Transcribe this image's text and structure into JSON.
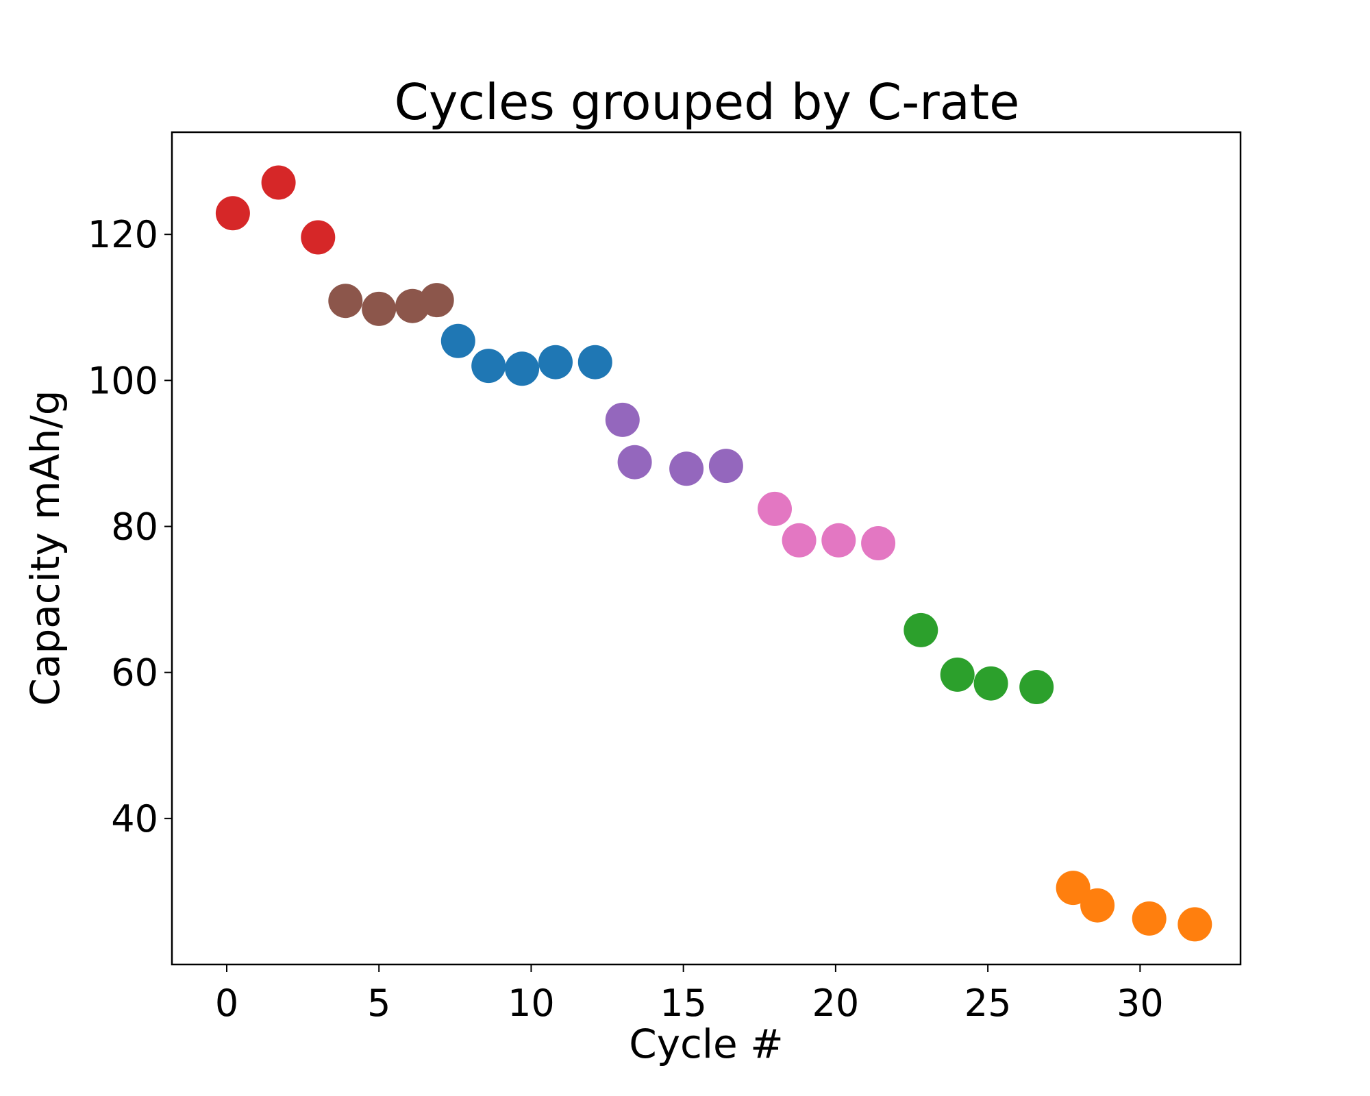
{
  "chart_data": {
    "type": "scatter",
    "title": "Cycles grouped by C-rate",
    "xlabel": "Cycle #",
    "ylabel": "Capacity mAh/g",
    "xlim": [
      -1.8,
      33.3
    ],
    "ylim": [
      20,
      134
    ],
    "xticks": [
      0,
      5,
      10,
      15,
      20,
      25,
      30
    ],
    "yticks": [
      40,
      60,
      80,
      100,
      120
    ],
    "grid": false,
    "legend": false,
    "series": [
      {
        "color": "#d62728",
        "points": [
          [
            0.2,
            122.9
          ],
          [
            1.7,
            127.1
          ],
          [
            3.0,
            119.6
          ]
        ]
      },
      {
        "color": "#8c564b",
        "points": [
          [
            3.9,
            110.9
          ],
          [
            5.0,
            109.8
          ],
          [
            6.1,
            110.2
          ],
          [
            6.9,
            111.0
          ]
        ]
      },
      {
        "color": "#1f77b4",
        "points": [
          [
            7.6,
            105.4
          ],
          [
            8.6,
            102.0
          ],
          [
            9.7,
            101.6
          ],
          [
            10.8,
            102.5
          ],
          [
            12.1,
            102.5
          ]
        ]
      },
      {
        "color": "#9467bd",
        "points": [
          [
            13.0,
            94.6
          ],
          [
            13.4,
            88.8
          ],
          [
            15.1,
            87.9
          ],
          [
            16.4,
            88.3
          ]
        ]
      },
      {
        "color": "#e377c2",
        "points": [
          [
            18.0,
            82.4
          ],
          [
            18.8,
            78.1
          ],
          [
            20.1,
            78.1
          ],
          [
            21.4,
            77.7
          ]
        ]
      },
      {
        "color": "#2ca02c",
        "points": [
          [
            22.8,
            65.8
          ],
          [
            24.0,
            59.7
          ],
          [
            25.1,
            58.5
          ],
          [
            26.6,
            58.0
          ]
        ]
      },
      {
        "color": "#ff7f0e",
        "points": [
          [
            27.8,
            30.5
          ],
          [
            28.6,
            28.1
          ],
          [
            30.3,
            26.3
          ],
          [
            31.8,
            25.5
          ]
        ]
      }
    ]
  }
}
